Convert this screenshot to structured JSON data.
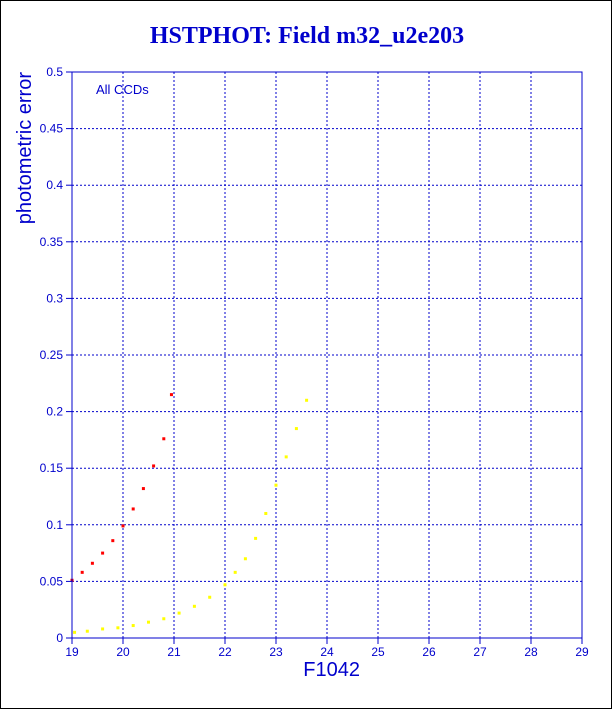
{
  "chart_data": {
    "type": "scatter",
    "title": "HSTPHOT: Field m32_u2e203",
    "xlabel": "F1042",
    "ylabel": "photometric error",
    "annotation": "All CCDs",
    "xlim": [
      19,
      29
    ],
    "ylim": [
      0,
      0.5
    ],
    "xticks": [
      "19",
      "20",
      "21",
      "22",
      "23",
      "24",
      "25",
      "26",
      "27",
      "28",
      "29"
    ],
    "yticks": [
      "0",
      "0.05",
      "0.1",
      "0.15",
      "0.2",
      "0.25",
      "0.3",
      "0.35",
      "0.4",
      "0.45",
      "0.5"
    ],
    "grid": true,
    "colors": {
      "axis": "#0000cc",
      "grid": "#0000cc",
      "red": "#ff0000",
      "blue": "#0000ff",
      "black": "#000000",
      "yellow": "#ffff00",
      "green": "#00cc00"
    },
    "series": [
      {
        "color": "red",
        "x": [
          19.0,
          19.2,
          19.4,
          19.6,
          19.8,
          20.0,
          20.2,
          20.4,
          20.6,
          20.8,
          20.95
        ],
        "y": [
          0.051,
          0.058,
          0.066,
          0.075,
          0.086,
          0.099,
          0.114,
          0.132,
          0.152,
          0.176,
          0.215
        ]
      },
      {
        "color": "yellow",
        "x": [
          19.05,
          19.3,
          19.6,
          19.9,
          20.2,
          20.5,
          20.8,
          21.1,
          21.4,
          21.7,
          22.0,
          22.2,
          22.4,
          22.6,
          22.8,
          23.0,
          23.2,
          23.4,
          23.6
        ],
        "y": [
          0.005,
          0.006,
          0.008,
          0.009,
          0.011,
          0.014,
          0.017,
          0.022,
          0.028,
          0.036,
          0.047,
          0.058,
          0.07,
          0.088,
          0.11,
          0.135,
          0.16,
          0.185,
          0.21
        ]
      }
    ]
  }
}
